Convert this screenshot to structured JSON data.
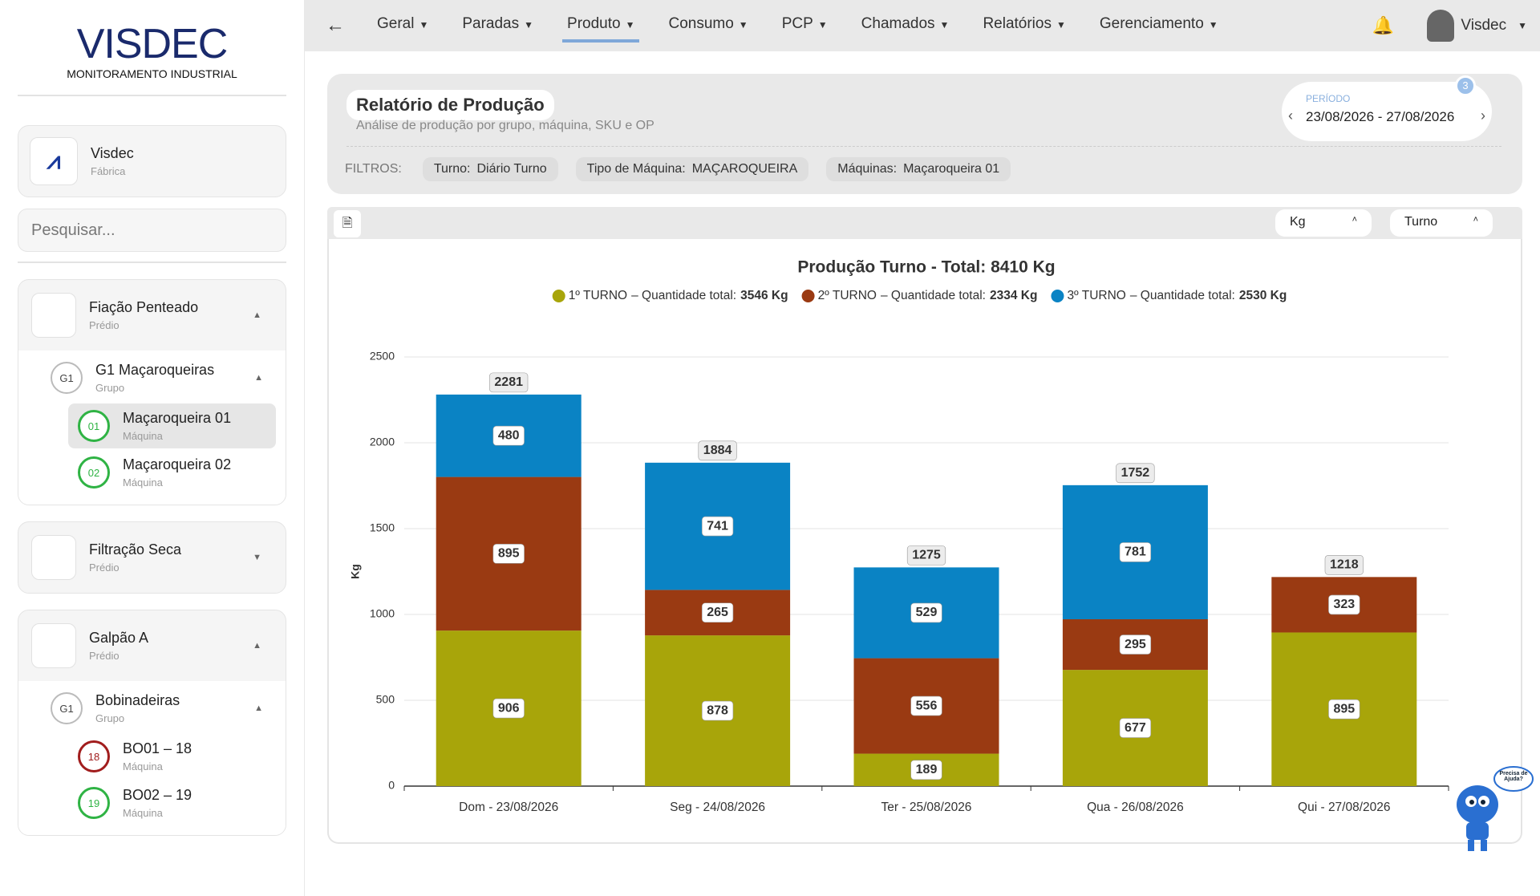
{
  "brand": {
    "name": "VISDEC",
    "tagline": "MONITORAMENTO INDUSTRIAL"
  },
  "company": {
    "name": "Visdec",
    "type": "Fábrica"
  },
  "search_placeholder": "Pesquisar...",
  "tree": [
    {
      "name": "Fiação Penteado",
      "type": "Prédio",
      "open": true,
      "groups": [
        {
          "badge": "G1",
          "name": "G1 Maçaroqueiras",
          "type": "Grupo",
          "machines": [
            {
              "badge": "01",
              "name": "Maçaroqueira 01",
              "type": "Máquina",
              "color": "#2fb344",
              "selected": true
            },
            {
              "badge": "02",
              "name": "Maçaroqueira 02",
              "type": "Máquina",
              "color": "#2fb344"
            }
          ]
        }
      ]
    },
    {
      "name": "Filtração Seca",
      "type": "Prédio",
      "open": false
    },
    {
      "name": "Galpão A",
      "type": "Prédio",
      "open": true,
      "groups": [
        {
          "badge": "G1",
          "name": "Bobinadeiras",
          "type": "Grupo",
          "machines": [
            {
              "badge": "18",
              "name": "BO01 – 18",
              "type": "Máquina",
              "color": "#a11d1d"
            },
            {
              "badge": "19",
              "name": "BO02 – 19",
              "type": "Máquina",
              "color": "#2fb344"
            }
          ]
        }
      ]
    }
  ],
  "nav": {
    "items": [
      "Geral",
      "Paradas",
      "Produto",
      "Consumo",
      "PCP",
      "Chamados",
      "Relatórios",
      "Gerenciamento"
    ],
    "active": 2,
    "user": "Visdec"
  },
  "report": {
    "title": "Relatório de Produção",
    "subtitle": "Análise de produção por grupo, máquina, SKU e OP",
    "period_label": "PERÍODO",
    "period": "23/08/2026 - 27/08/2026",
    "badge": 3,
    "filters_label": "FILTROS:",
    "filters": [
      {
        "key": "Turno:",
        "value": "Diário Turno"
      },
      {
        "key": "Tipo de Máquina:",
        "value": "MAÇAROQUEIRA"
      },
      {
        "key": "Máquinas:",
        "value": "Maçaroqueira 01"
      }
    ]
  },
  "controls": {
    "unit": "Kg",
    "grouping": "Turno"
  },
  "help": "Precisa de Ajuda?",
  "chart_data": {
    "type": "stacked_bar",
    "title": "Produção Turno - Total: 8410 Kg",
    "y_label": "Kg",
    "legend_text": "– Quantidade total:",
    "categories": [
      "Dom - 23/08/2026",
      "Seg - 24/08/2026",
      "Ter - 25/08/2026",
      "Qua - 26/08/2026",
      "Qui - 27/08/2026"
    ],
    "series": [
      {
        "name": "1º TURNO",
        "color": "#a8a50a",
        "total_label": "3546 Kg",
        "values": [
          906,
          878,
          189,
          677,
          895
        ]
      },
      {
        "name": "2º TURNO",
        "color": "#9a3a12",
        "total_label": "2334 Kg",
        "values": [
          895,
          265,
          556,
          295,
          323
        ]
      },
      {
        "name": "3º TURNO",
        "color": "#0a83c4",
        "total_label": "2530 Kg",
        "values": [
          480,
          741,
          529,
          781,
          null
        ]
      }
    ],
    "totals": [
      2281,
      1884,
      1275,
      1752,
      1218
    ],
    "ylim": [
      0,
      2500
    ],
    "yticks": [
      0,
      500,
      1000,
      1500,
      2000,
      2500
    ],
    "grid": true
  }
}
